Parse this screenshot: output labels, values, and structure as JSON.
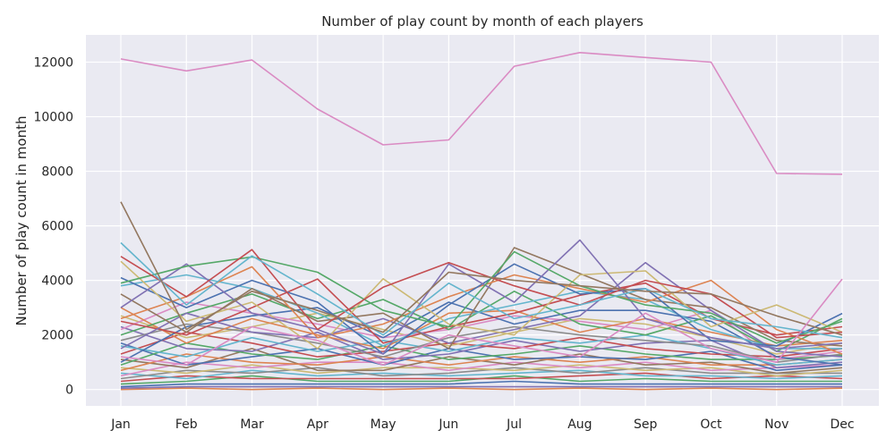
{
  "chart_data": {
    "type": "line",
    "title": "Number of play count by month of each players",
    "xlabel": "",
    "ylabel": "Number of play count in month",
    "categories": [
      "Jan",
      "Feb",
      "Mar",
      "Apr",
      "May",
      "Jun",
      "Jul",
      "Aug",
      "Sep",
      "Oct",
      "Nov",
      "Dec"
    ],
    "ylim": [
      -600,
      13000
    ],
    "yticks": [
      0,
      2000,
      4000,
      6000,
      8000,
      10000,
      12000
    ],
    "grid": true,
    "legend": "none",
    "palette": [
      "#4c72b0",
      "#dd8452",
      "#55a868",
      "#c44e52",
      "#8172b3",
      "#937860",
      "#da8bc3",
      "#8c8c8c",
      "#ccb974",
      "#64b5cd"
    ],
    "series": [
      {
        "color": "#da8bc3",
        "values": [
          12120,
          11680,
          12080,
          10280,
          8970,
          9150,
          11850,
          12350,
          12170,
          12000,
          7920,
          7890
        ]
      },
      {
        "color": "#da8bc3",
        "values": [
          1200,
          900,
          2300,
          1800,
          900,
          2000,
          1600,
          1200,
          2800,
          1500,
          1000,
          4050
        ]
      },
      {
        "color": "#937860",
        "values": [
          6880,
          2200,
          3600,
          2900,
          2100,
          4300,
          4000,
          3800,
          3600,
          3500,
          2700,
          2000
        ]
      },
      {
        "color": "#64b5cd",
        "values": [
          5380,
          3100,
          4900,
          3500,
          2000,
          3900,
          2600,
          3100,
          3700,
          2600,
          2300,
          1900
        ]
      },
      {
        "color": "#c44e52",
        "values": [
          4880,
          3400,
          5130,
          2200,
          3750,
          4650,
          3800,
          3100,
          4000,
          3500,
          1900,
          2100
        ]
      },
      {
        "color": "#55a868",
        "values": [
          3900,
          4520,
          4860,
          4300,
          2900,
          2300,
          5050,
          3800,
          3100,
          2800,
          1700,
          2500
        ]
      },
      {
        "color": "#8172b3",
        "values": [
          3000,
          4600,
          2800,
          2200,
          1300,
          4600,
          3200,
          5480,
          2600,
          1900,
          1500,
          1700
        ]
      },
      {
        "color": "#ccb974",
        "values": [
          4700,
          2500,
          3200,
          1500,
          4060,
          2400,
          2000,
          4200,
          4350,
          2300,
          3100,
          2100
        ]
      },
      {
        "color": "#4c72b0",
        "values": [
          4100,
          3000,
          4000,
          3200,
          1300,
          3100,
          4600,
          3500,
          3700,
          1800,
          1600,
          2790
        ]
      },
      {
        "color": "#dd8452",
        "values": [
          2600,
          3400,
          4500,
          1900,
          2400,
          3400,
          4200,
          3700,
          3200,
          4000,
          2200,
          1300
        ]
      },
      {
        "color": "#937860",
        "values": [
          3500,
          2100,
          3700,
          2500,
          2800,
          1500,
          5200,
          4250,
          3300,
          3000,
          1800,
          1600
        ]
      },
      {
        "color": "#8172b3",
        "values": [
          1500,
          2800,
          2100,
          1900,
          2600,
          1700,
          2200,
          2700,
          4650,
          2900,
          1400,
          1200
        ]
      },
      {
        "color": "#64b5cd",
        "values": [
          3800,
          4200,
          3700,
          2800,
          1600,
          2600,
          3100,
          3600,
          3300,
          2200,
          1500,
          1500
        ]
      },
      {
        "color": "#c44e52",
        "values": [
          2500,
          2000,
          3000,
          4050,
          1700,
          2300,
          2800,
          3450,
          3900,
          2600,
          2000,
          2300
        ]
      },
      {
        "color": "#55a868",
        "values": [
          2000,
          2800,
          3500,
          2600,
          3300,
          2200,
          3600,
          2400,
          2000,
          2700,
          1400,
          2600
        ]
      },
      {
        "color": "#4c72b0",
        "values": [
          1000,
          2300,
          2700,
          3000,
          1900,
          3200,
          2400,
          2900,
          2900,
          2500,
          1200,
          900
        ]
      },
      {
        "color": "#dd8452",
        "values": [
          3000,
          1700,
          2600,
          2000,
          1500,
          2800,
          2900,
          2100,
          2600,
          2100,
          1600,
          1800
        ]
      },
      {
        "color": "#da8bc3",
        "values": [
          2200,
          3200,
          2800,
          2400,
          1900,
          2200,
          2700,
          2500,
          2200,
          2900,
          1100,
          1400
        ]
      },
      {
        "color": "#8c8c8c",
        "values": [
          1800,
          2400,
          2100,
          1700,
          1200,
          1900,
          2300,
          2000,
          1800,
          1600,
          1000,
          1300
        ]
      },
      {
        "color": "#ccb974",
        "values": [
          2700,
          1900,
          2300,
          2800,
          2200,
          1600,
          2100,
          2600,
          2400,
          1900,
          1300,
          1700
        ]
      },
      {
        "color": "#64b5cd",
        "values": [
          1600,
          1200,
          1900,
          1400,
          1800,
          1400,
          1900,
          1700,
          2000,
          1500,
          900,
          1100
        ]
      },
      {
        "color": "#c44e52",
        "values": [
          1300,
          2100,
          1700,
          1200,
          1400,
          1700,
          1500,
          1900,
          1500,
          1300,
          1200,
          1500
        ]
      },
      {
        "color": "#8172b3",
        "values": [
          2300,
          1500,
          1400,
          2100,
          1100,
          1300,
          1800,
          1400,
          1700,
          1800,
          800,
          1000
        ]
      },
      {
        "color": "#55a868",
        "values": [
          900,
          1700,
          1300,
          1100,
          1600,
          1100,
          1300,
          1600,
          1300,
          1100,
          1100,
          1250
        ]
      },
      {
        "color": "#4c72b0",
        "values": [
          1700,
          900,
          1200,
          1500,
          900,
          1500,
          1100,
          1200,
          1100,
          1400,
          700,
          900
        ]
      },
      {
        "color": "#dd8452",
        "values": [
          700,
          1300,
          1000,
          900,
          1200,
          900,
          1200,
          1000,
          1200,
          900,
          900,
          1100
        ]
      },
      {
        "color": "#937860",
        "values": [
          1100,
          800,
          1500,
          700,
          700,
          1200,
          900,
          1300,
          900,
          1000,
          600,
          800
        ]
      },
      {
        "color": "#da8bc3",
        "values": [
          500,
          1000,
          800,
          1000,
          1000,
          700,
          1000,
          800,
          1000,
          700,
          800,
          900
        ]
      },
      {
        "color": "#ccb974",
        "values": [
          800,
          600,
          900,
          600,
          800,
          800,
          700,
          900,
          700,
          800,
          500,
          700
        ]
      },
      {
        "color": "#8c8c8c",
        "values": [
          400,
          700,
          600,
          800,
          500,
          600,
          800,
          600,
          800,
          600,
          600,
          600
        ]
      },
      {
        "color": "#64b5cd",
        "values": [
          600,
          400,
          700,
          500,
          600,
          500,
          600,
          700,
          500,
          500,
          400,
          500
        ]
      },
      {
        "color": "#c44e52",
        "values": [
          300,
          500,
          400,
          400,
          400,
          400,
          400,
          500,
          600,
          400,
          500,
          400
        ]
      },
      {
        "color": "#55a868",
        "values": [
          200,
          300,
          500,
          300,
          300,
          300,
          500,
          300,
          400,
          300,
          300,
          300
        ]
      },
      {
        "color": "#4c72b0",
        "values": [
          100,
          200,
          200,
          200,
          200,
          200,
          300,
          200,
          200,
          200,
          200,
          200
        ]
      },
      {
        "color": "#8172b3",
        "values": [
          50,
          100,
          100,
          100,
          100,
          100,
          100,
          100,
          100,
          100,
          100,
          100
        ]
      },
      {
        "color": "#dd8452",
        "values": [
          0,
          50,
          0,
          50,
          0,
          50,
          0,
          50,
          0,
          50,
          0,
          50
        ]
      }
    ]
  }
}
